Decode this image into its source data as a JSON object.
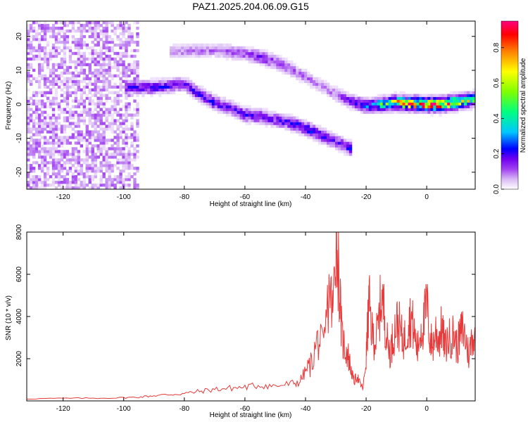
{
  "title": "PAZ1.2025.204.06.09.G15",
  "chart_data": [
    {
      "type": "heatmap",
      "xlabel": "Height of straight line (km)",
      "ylabel": "Frequency (Hz)",
      "xlim": [
        -132,
        16
      ],
      "ylim": [
        -25,
        24.5
      ],
      "xticks": [
        -120,
        -100,
        -80,
        -60,
        -40,
        -20,
        0
      ],
      "yticks": [
        -20,
        -10,
        0,
        10,
        20
      ],
      "grid": false,
      "colorbar": {
        "label": "Normalized spectral amplitude",
        "range": [
          0,
          0.95
        ],
        "ticks": [
          0.0,
          0.2,
          0.4,
          0.6,
          0.8
        ],
        "colormap": [
          "#ffffff",
          "#d9b8f5",
          "#a040f0",
          "#7000f0",
          "#0000ff",
          "#00c8ff",
          "#00ff80",
          "#80ff00",
          "#ffff00",
          "#ff8000",
          "#ff0000",
          "#ff0080"
        ]
      },
      "features": [
        {
          "name": "upper branch",
          "points": [
            [
              -85,
              15.5
            ],
            [
              -70,
              16
            ],
            [
              -60,
              15
            ],
            [
              -55,
              14
            ],
            [
              -50,
              12.5
            ],
            [
              -45,
              10.5
            ],
            [
              -40,
              8
            ],
            [
              -35,
              5.5
            ],
            [
              -30,
              3
            ],
            [
              -25,
              1
            ],
            [
              -20,
              -0.5
            ],
            [
              -10,
              0.5
            ],
            [
              0,
              0
            ],
            [
              5,
              0
            ],
            [
              16,
              1.5
            ]
          ],
          "amplitude": [
            0.12,
            0.15,
            0.18,
            0.25,
            0.2,
            0.18,
            0.15,
            0.12,
            0.15,
            0.25,
            0.35,
            0.7,
            0.9,
            0.85,
            0.6
          ]
        },
        {
          "name": "lower branch",
          "points": [
            [
              -100,
              5
            ],
            [
              -90,
              5
            ],
            [
              -80,
              6
            ],
            [
              -75,
              3
            ],
            [
              -70,
              0.5
            ],
            [
              -65,
              -1
            ],
            [
              -60,
              -3
            ],
            [
              -55,
              -3.5
            ],
            [
              -50,
              -4.5
            ],
            [
              -45,
              -5.5
            ],
            [
              -40,
              -7
            ],
            [
              -35,
              -9
            ],
            [
              -30,
              -11
            ],
            [
              -25,
              -13
            ]
          ],
          "amplitude": [
            0.25,
            0.3,
            0.25,
            0.3,
            0.3,
            0.25,
            0.3,
            0.28,
            0.25,
            0.3,
            0.35,
            0.3,
            0.25,
            0.3
          ]
        },
        {
          "name": "noise region",
          "x_range": [
            -132,
            -95
          ],
          "y_range": [
            -25,
            24.5
          ],
          "amplitude": 0.1
        }
      ]
    },
    {
      "type": "line",
      "xlabel": "Height of straight line (km)",
      "ylabel": "SNR (10 * v/v)",
      "xlim": [
        -132,
        16
      ],
      "ylim": [
        0,
        8000
      ],
      "xticks": [
        -120,
        -100,
        -80,
        -60,
        -40,
        -20,
        0
      ],
      "yticks": [
        2000,
        4000,
        6000,
        8000
      ],
      "grid": false,
      "series": [
        {
          "color": "#e83a3a",
          "x": [
            -132,
            -120,
            -110,
            -100,
            -95,
            -90,
            -85,
            -80,
            -75,
            -70,
            -65,
            -60,
            -55,
            -50,
            -45,
            -42,
            -40,
            -38,
            -36,
            -34,
            -32,
            -31,
            -30,
            -29,
            -28,
            -27,
            -26,
            -25,
            -24,
            -23,
            -22,
            -21,
            -20,
            -19.5,
            -19,
            -18,
            -17,
            -16,
            -15,
            -14,
            -13,
            -12,
            -11,
            -10,
            -9,
            -8,
            -7,
            -6,
            -5,
            -4,
            -3,
            -2,
            -1,
            0,
            1,
            2,
            3,
            4,
            5,
            6,
            7,
            8,
            9,
            10,
            11,
            12,
            13,
            14,
            15,
            16
          ],
          "y": [
            100,
            120,
            130,
            150,
            180,
            250,
            300,
            350,
            450,
            550,
            600,
            650,
            750,
            700,
            800,
            900,
            1400,
            1800,
            2900,
            2500,
            5500,
            4000,
            8000,
            6000,
            3000,
            2500,
            2200,
            1500,
            900,
            1200,
            800,
            600,
            2000,
            3500,
            4600,
            3200,
            2800,
            3500,
            5000,
            4200,
            2800,
            2300,
            3100,
            3700,
            3500,
            2900,
            3000,
            3800,
            3900,
            3100,
            2400,
            3400,
            3600,
            4700,
            3000,
            2600,
            3300,
            2900,
            3500,
            2500,
            2900,
            3000,
            3200,
            2500,
            3100,
            3400,
            2800,
            2100,
            3200,
            2700
          ]
        }
      ]
    }
  ]
}
